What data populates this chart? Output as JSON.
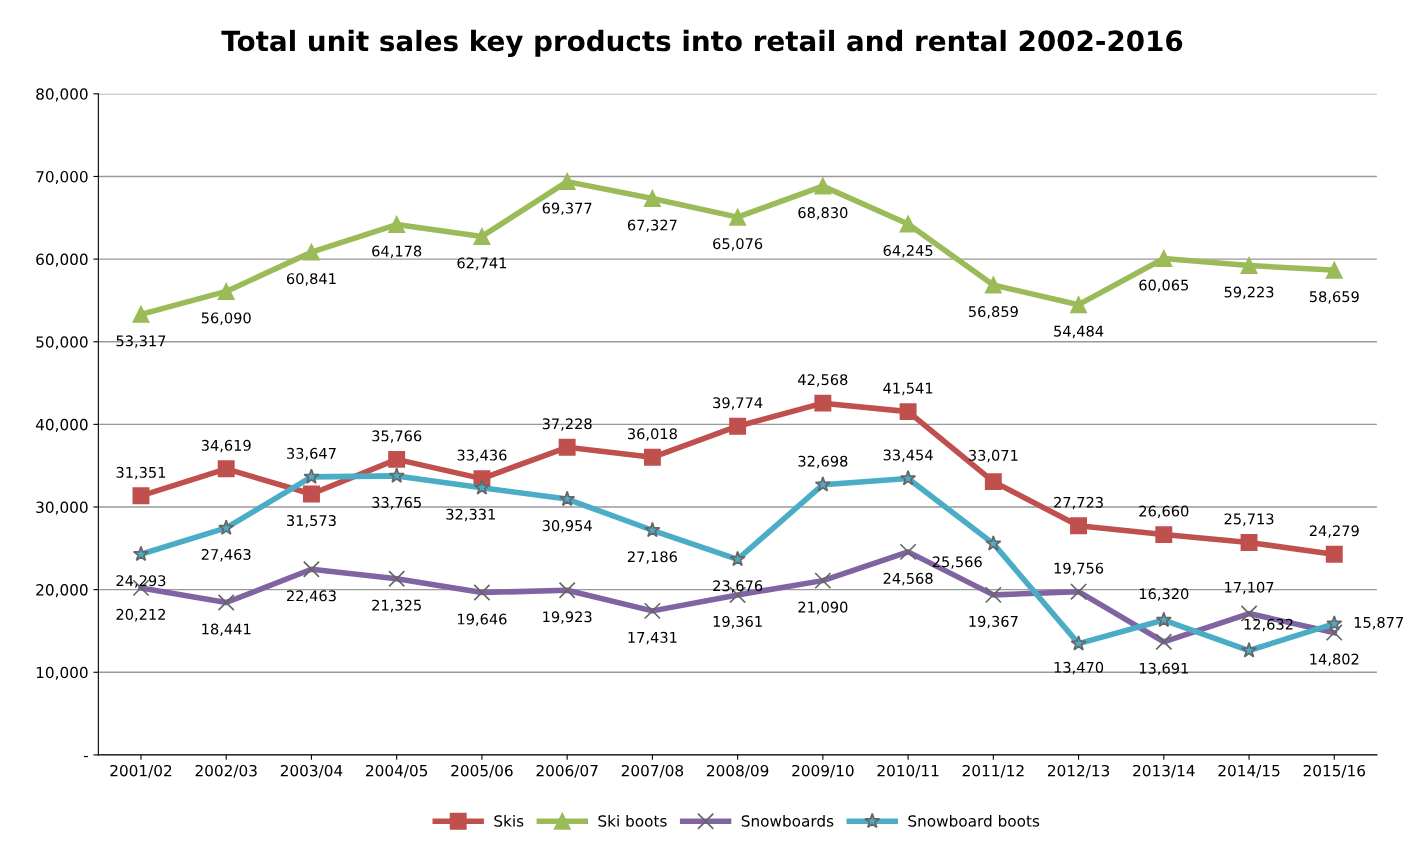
{
  "chart_data": {
    "type": "line",
    "title": "Total unit sales key products into retail and rental 2002-2016",
    "categories": [
      "2001/02",
      "2002/03",
      "2003/04",
      "2004/05",
      "2005/06",
      "2006/07",
      "2007/08",
      "2008/09",
      "2009/10",
      "2010/11",
      "2011/12",
      "2012/13",
      "2013/14",
      "2014/15",
      "2015/16"
    ],
    "series": [
      {
        "name": "Skis",
        "color": "#c0504d",
        "marker": "square",
        "values": [
          31351,
          34619,
          31573,
          35766,
          33436,
          37228,
          36018,
          39774,
          42568,
          41541,
          33071,
          27723,
          26660,
          25713,
          24279
        ],
        "value_labels": [
          "31,351",
          "34,619",
          "31,573",
          "35,766",
          "33,436",
          "37,228",
          "36,018",
          "39,774",
          "42,568",
          "41,541",
          "33,071",
          "27,723",
          "26,660",
          "25,713",
          "24,279"
        ]
      },
      {
        "name": "Ski boots",
        "color": "#9bbb59",
        "marker": "triangle",
        "values": [
          53317,
          56090,
          60841,
          64178,
          62741,
          69377,
          67327,
          65076,
          68830,
          64245,
          56859,
          54484,
          60065,
          59223,
          58659
        ],
        "value_labels": [
          "53,317",
          "56,090",
          "60,841",
          "64,178",
          "62,741",
          "69,377",
          "67,327",
          "65,076",
          "68,830",
          "64,245",
          "56,859",
          "54,484",
          "60,065",
          "59,223",
          "58,659"
        ]
      },
      {
        "name": "Snowboards",
        "color": "#8064a2",
        "marker": "cross",
        "values": [
          20212,
          18441,
          22463,
          21325,
          19646,
          19923,
          17431,
          19361,
          21090,
          24568,
          19367,
          19756,
          13691,
          17107,
          14802
        ],
        "value_labels": [
          "20,212",
          "18,441",
          "22,463",
          "21,325",
          "19,646",
          "19,923",
          "17,431",
          "19,361",
          "21,090",
          "24,568",
          "19,367",
          "19,756",
          "13,691",
          "17,107",
          "14,802"
        ]
      },
      {
        "name": "Snowboard boots",
        "color": "#4bacc6",
        "marker": "star",
        "values": [
          24293,
          27463,
          33647,
          33765,
          32331,
          30954,
          27186,
          23676,
          32698,
          33454,
          25566,
          13470,
          16320,
          12632,
          15877
        ],
        "value_labels": [
          "24,293",
          "27,463",
          "33,647",
          "33,765",
          "32,331",
          "30,954",
          "27,186",
          "23,676",
          "32,698",
          "33,454",
          "25,566",
          "13,470",
          "16,320",
          "12,632",
          "15,877"
        ]
      }
    ],
    "ylim": [
      0,
      80000
    ],
    "yticks": [
      {
        "value": 0,
        "label": "-"
      },
      {
        "value": 10000,
        "label": "10,000"
      },
      {
        "value": 20000,
        "label": "20,000"
      },
      {
        "value": 30000,
        "label": "30,000"
      },
      {
        "value": 40000,
        "label": "40,000"
      },
      {
        "value": 50000,
        "label": "50,000"
      },
      {
        "value": 60000,
        "label": "60,000"
      },
      {
        "value": 70000,
        "label": "70,000"
      },
      {
        "value": 80000,
        "label": "80,000"
      }
    ],
    "grid": "y",
    "legend": "bottom",
    "line_style": "solid"
  }
}
